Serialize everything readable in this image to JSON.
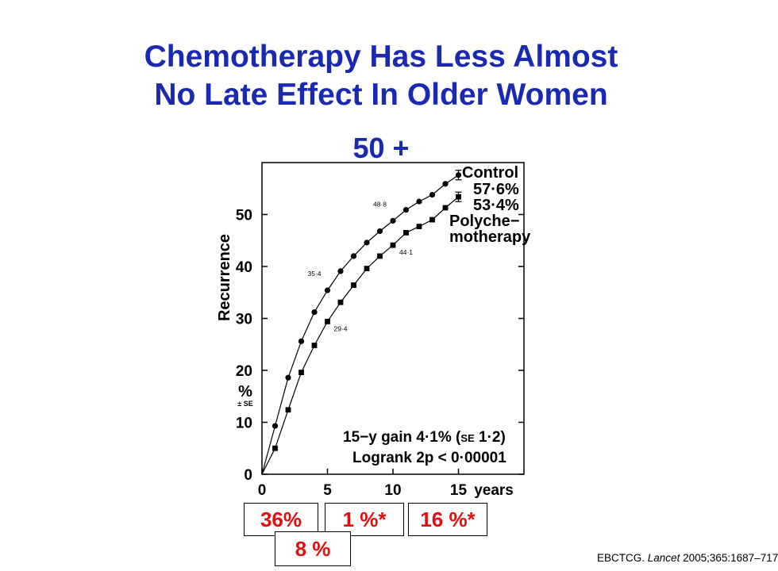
{
  "title": {
    "line1": "Chemotherapy Has Less Almost",
    "line2": "No Late Effect In Older Women"
  },
  "subtitle": "50 +",
  "colors": {
    "title": "#1a2ab0",
    "boxes": "#e01010",
    "lines": "#000000"
  },
  "chart_data": {
    "type": "line",
    "title": "",
    "xlabel": "years",
    "ylabel": "Recurrence",
    "ylabel_units": "%",
    "ylabel_se": "± SE",
    "xlim": [
      0,
      20
    ],
    "ylim": [
      0,
      60
    ],
    "xticks": [
      0,
      5,
      10,
      15
    ],
    "yticks": [
      0,
      10,
      20,
      30,
      40,
      50
    ],
    "grid": false,
    "series": [
      {
        "name": "Control",
        "marker": "circle",
        "x": [
          0,
          1,
          2,
          3,
          4,
          5,
          6,
          7,
          8,
          9,
          10,
          11,
          12,
          13,
          14,
          15
        ],
        "values": [
          0,
          9.3,
          18.6,
          25.6,
          31.2,
          35.4,
          39.1,
          42.0,
          44.6,
          46.8,
          48.8,
          50.9,
          52.5,
          53.8,
          55.9,
          57.6
        ],
        "final_value": 57.6,
        "legend_value": "57·6%"
      },
      {
        "name": "Polychemotherapy",
        "label_line1": "Polyche−",
        "label_line2": "motherapy",
        "marker": "square",
        "x": [
          0,
          1,
          2,
          3,
          4,
          5,
          6,
          7,
          8,
          9,
          10,
          11,
          12,
          13,
          14,
          15
        ],
        "values": [
          0,
          5.0,
          12.4,
          19.6,
          24.8,
          29.4,
          33.1,
          36.4,
          39.6,
          42.0,
          44.1,
          46.5,
          47.7,
          49.0,
          51.3,
          53.4
        ],
        "final_value": 53.4,
        "legend_value": "53·4%"
      }
    ],
    "point_labels": [
      {
        "series": "Control",
        "x": 5,
        "y": 35.4,
        "text": "35·4"
      },
      {
        "series": "Control",
        "x": 10,
        "y": 48.8,
        "text": "48·8"
      },
      {
        "series": "Polychemotherapy",
        "x": 5,
        "y": 29.4,
        "text": "29·4"
      },
      {
        "series": "Polychemotherapy",
        "x": 10,
        "y": 44.1,
        "text": "44·1"
      }
    ],
    "annotations": {
      "gain_prefix": "15−y gain 4·1% (",
      "gain_se": "SE",
      "gain_suffix": " 1·2)",
      "logrank": "Logrank 2p < 0·00001"
    }
  },
  "boxes": [
    {
      "id": "box-1",
      "text": "36%"
    },
    {
      "id": "box-2",
      "text": "1 %*"
    },
    {
      "id": "box-3",
      "text": "16 %*"
    },
    {
      "id": "box-4",
      "text": "8 %"
    }
  ],
  "citation": {
    "author": "EBCTCG.",
    "journal": "Lancet",
    "details": "2005;365:1687–717"
  }
}
